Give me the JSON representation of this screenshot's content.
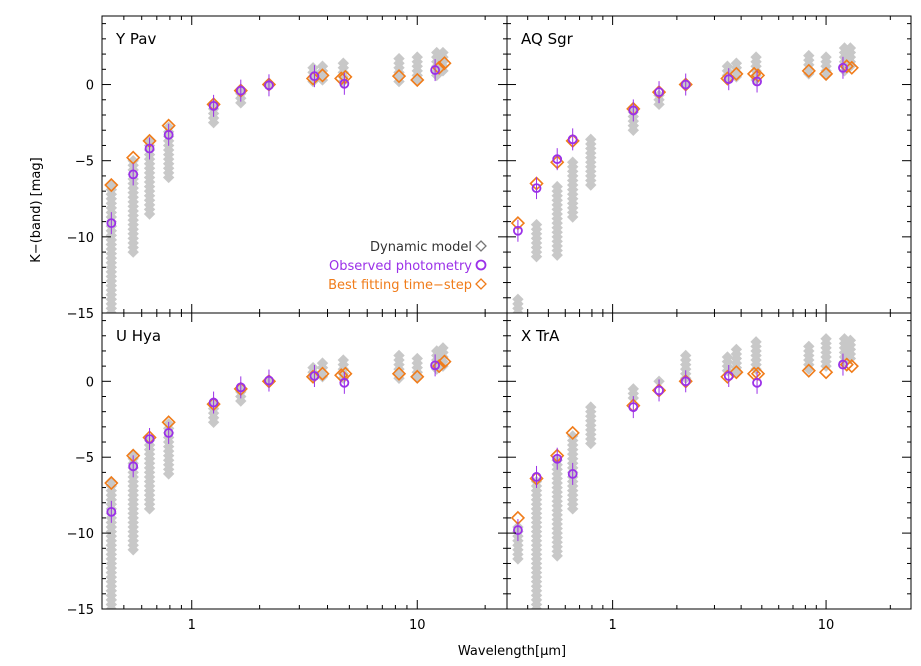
{
  "figure": {
    "xlabel": "Wavelength[μm]",
    "ylabel": "K−(band) [mag]",
    "legend": {
      "model": "Dynamic model",
      "observed": "Observed photometry",
      "best": "Best fitting time−step"
    },
    "colors": {
      "model": "#c8c8c8",
      "observed": "#9b30e8",
      "best": "#f07c1a"
    }
  },
  "chart_data": [
    {
      "type": "scatter",
      "title": "Y Pav",
      "xscale": "log",
      "xlim": [
        0.4,
        25
      ],
      "ylim": [
        -15,
        4.5
      ],
      "xticks": [
        1,
        10
      ],
      "yticks": [
        0,
        -5,
        -10,
        -15
      ],
      "show_y_tick_labels": true,
      "show_x_tick_labels": false,
      "legend_position": "center-right",
      "bands": [
        0.44,
        0.55,
        0.65,
        0.79,
        1.25,
        1.65,
        2.2,
        3.45,
        3.8,
        4.7,
        8.3,
        10.0,
        12.2,
        13.0
      ],
      "model_ranges": [
        [
          -15,
          -6.5
        ],
        [
          -11,
          -4.8
        ],
        [
          -8.5,
          -3.7
        ],
        [
          -6.1,
          -2.7
        ],
        [
          -2.5,
          -1.1
        ],
        [
          -1.2,
          -0.2
        ],
        [
          0,
          0
        ],
        [
          0.2,
          1.1
        ],
        [
          0.3,
          1.2
        ],
        [
          0.2,
          1.6
        ],
        [
          0.2,
          1.9
        ],
        [
          0.3,
          1.8
        ],
        [
          0.6,
          2.3
        ],
        [
          0.9,
          2.3
        ]
      ],
      "observed": [
        {
          "x": 0.44,
          "y": -9.1
        },
        {
          "x": 0.55,
          "y": -5.9
        },
        {
          "x": 0.65,
          "y": -4.2
        },
        {
          "x": 0.79,
          "y": -3.3
        },
        {
          "x": 1.25,
          "y": -1.4
        },
        {
          "x": 1.65,
          "y": -0.4
        },
        {
          "x": 2.2,
          "y": -0.05
        },
        {
          "x": 3.5,
          "y": 0.55
        },
        {
          "x": 4.75,
          "y": 0.05
        },
        {
          "x": 12.0,
          "y": 0.95
        }
      ],
      "best": [
        {
          "x": 0.44,
          "y": -6.6
        },
        {
          "x": 0.55,
          "y": -4.8
        },
        {
          "x": 0.65,
          "y": -3.7
        },
        {
          "x": 0.79,
          "y": -2.7
        },
        {
          "x": 1.25,
          "y": -1.3
        },
        {
          "x": 1.65,
          "y": -0.4
        },
        {
          "x": 2.2,
          "y": 0
        },
        {
          "x": 3.45,
          "y": 0.4
        },
        {
          "x": 3.8,
          "y": 0.6
        },
        {
          "x": 4.6,
          "y": 0.4
        },
        {
          "x": 4.8,
          "y": 0.5
        },
        {
          "x": 8.3,
          "y": 0.55
        },
        {
          "x": 10.0,
          "y": 0.3
        },
        {
          "x": 12.5,
          "y": 1.1
        },
        {
          "x": 13.2,
          "y": 1.4
        }
      ]
    },
    {
      "type": "scatter",
      "title": "AQ Sgr",
      "xscale": "log",
      "xlim": [
        0.32,
        25
      ],
      "ylim": [
        -15,
        4.5
      ],
      "xticks": [
        1,
        10
      ],
      "yticks": [
        0,
        -5,
        -10,
        -15
      ],
      "show_y_tick_labels": false,
      "show_x_tick_labels": false,
      "bands": [
        0.36,
        0.44,
        0.55,
        0.65,
        0.79,
        1.25,
        1.65,
        2.2,
        3.45,
        3.8,
        4.7,
        8.3,
        10.0,
        12.2,
        13.0
      ],
      "model_ranges": [
        [
          -15,
          -14
        ],
        [
          -11.3,
          -9.0
        ],
        [
          -11.2,
          -6.5
        ],
        [
          -8.7,
          -5.0
        ],
        [
          -6.6,
          -3.5
        ],
        [
          -3.0,
          -1.5
        ],
        [
          -1.3,
          -0.5
        ],
        [
          0,
          0
        ],
        [
          0.3,
          1.4
        ],
        [
          0.5,
          1.6
        ],
        [
          0.3,
          2.0
        ],
        [
          0.7,
          2.1
        ],
        [
          0.6,
          2.0
        ],
        [
          0.9,
          2.5
        ],
        [
          1.2,
          2.5
        ]
      ],
      "observed": [
        {
          "x": 0.36,
          "y": -9.6
        },
        {
          "x": 0.44,
          "y": -6.8
        },
        {
          "x": 0.55,
          "y": -4.9
        },
        {
          "x": 0.65,
          "y": -3.6
        },
        {
          "x": 1.25,
          "y": -1.7
        },
        {
          "x": 1.65,
          "y": -0.5
        },
        {
          "x": 2.2,
          "y": 0.0
        },
        {
          "x": 3.5,
          "y": 0.35
        },
        {
          "x": 4.75,
          "y": 0.2
        },
        {
          "x": 12.0,
          "y": 1.1
        }
      ],
      "best": [
        {
          "x": 0.36,
          "y": -9.1
        },
        {
          "x": 0.44,
          "y": -6.5
        },
        {
          "x": 0.55,
          "y": -5.1
        },
        {
          "x": 0.65,
          "y": -3.7
        },
        {
          "x": 1.25,
          "y": -1.6
        },
        {
          "x": 1.65,
          "y": -0.5
        },
        {
          "x": 2.2,
          "y": 0
        },
        {
          "x": 3.45,
          "y": 0.4
        },
        {
          "x": 3.8,
          "y": 0.7
        },
        {
          "x": 4.6,
          "y": 0.7
        },
        {
          "x": 4.8,
          "y": 0.6
        },
        {
          "x": 8.3,
          "y": 0.9
        },
        {
          "x": 10.0,
          "y": 0.7
        },
        {
          "x": 12.5,
          "y": 1.2
        },
        {
          "x": 13.2,
          "y": 1.1
        }
      ]
    },
    {
      "type": "scatter",
      "title": "U Hya",
      "xscale": "log",
      "xlim": [
        0.4,
        25
      ],
      "ylim": [
        -15,
        4.5
      ],
      "xticks": [
        1,
        10
      ],
      "yticks": [
        0,
        -5,
        -10,
        -15
      ],
      "show_y_tick_labels": true,
      "show_x_tick_labels": true,
      "bands": [
        0.44,
        0.55,
        0.65,
        0.79,
        1.25,
        1.65,
        2.2,
        3.45,
        3.8,
        4.7,
        8.3,
        10.0,
        12.2,
        13.0
      ],
      "model_ranges": [
        [
          -15,
          -6.6
        ],
        [
          -11.1,
          -4.8
        ],
        [
          -8.4,
          -3.7
        ],
        [
          -6.1,
          -2.7
        ],
        [
          -2.7,
          -1.3
        ],
        [
          -1.3,
          -0.3
        ],
        [
          0,
          0
        ],
        [
          0.3,
          1.1
        ],
        [
          0.3,
          1.3
        ],
        [
          0.2,
          1.6
        ],
        [
          0.2,
          1.8
        ],
        [
          0.3,
          1.7
        ],
        [
          0.8,
          2.2
        ],
        [
          1.0,
          2.2
        ]
      ],
      "observed": [
        {
          "x": 0.44,
          "y": -8.6
        },
        {
          "x": 0.55,
          "y": -5.6
        },
        {
          "x": 0.65,
          "y": -3.8
        },
        {
          "x": 0.79,
          "y": -3.4
        },
        {
          "x": 1.25,
          "y": -1.4
        },
        {
          "x": 1.65,
          "y": -0.4
        },
        {
          "x": 2.2,
          "y": 0.05
        },
        {
          "x": 3.5,
          "y": 0.35
        },
        {
          "x": 4.75,
          "y": -0.1
        },
        {
          "x": 12.0,
          "y": 1.05
        }
      ],
      "best": [
        {
          "x": 0.44,
          "y": -6.7
        },
        {
          "x": 0.55,
          "y": -4.9
        },
        {
          "x": 0.65,
          "y": -3.7
        },
        {
          "x": 0.79,
          "y": -2.7
        },
        {
          "x": 1.25,
          "y": -1.5
        },
        {
          "x": 1.65,
          "y": -0.5
        },
        {
          "x": 2.2,
          "y": 0
        },
        {
          "x": 3.45,
          "y": 0.3
        },
        {
          "x": 3.8,
          "y": 0.5
        },
        {
          "x": 4.6,
          "y": 0.4
        },
        {
          "x": 4.8,
          "y": 0.5
        },
        {
          "x": 8.3,
          "y": 0.5
        },
        {
          "x": 10.0,
          "y": 0.3
        },
        {
          "x": 12.5,
          "y": 1.0
        },
        {
          "x": 13.2,
          "y": 1.3
        }
      ]
    },
    {
      "type": "scatter",
      "title": "X TrA",
      "xscale": "log",
      "xlim": [
        0.32,
        25
      ],
      "ylim": [
        -15,
        4.5
      ],
      "xticks": [
        1,
        10
      ],
      "yticks": [
        0,
        -5,
        -10,
        -15
      ],
      "show_y_tick_labels": false,
      "show_x_tick_labels": true,
      "bands": [
        0.36,
        0.44,
        0.55,
        0.65,
        0.79,
        1.25,
        1.65,
        2.2,
        3.45,
        3.8,
        4.7,
        8.3,
        10.0,
        12.2,
        13.0
      ],
      "model_ranges": [
        [
          -11.7,
          -9.4
        ],
        [
          -15,
          -6.5
        ],
        [
          -11.5,
          -5.0
        ],
        [
          -8.4,
          -3.6
        ],
        [
          -4.1,
          -1.7
        ],
        [
          -1.1,
          -0.5
        ],
        [
          0,
          0
        ],
        [
          0.2,
          1.7
        ],
        [
          0.7,
          1.8
        ],
        [
          0.6,
          2.3
        ],
        [
          0.8,
          2.7
        ],
        [
          0.8,
          2.3
        ],
        [
          1.0,
          2.9
        ],
        [
          1.3,
          2.9
        ],
        [
          1.5,
          2.9
        ]
      ],
      "observed": [
        {
          "x": 0.36,
          "y": -9.8
        },
        {
          "x": 0.44,
          "y": -6.3
        },
        {
          "x": 0.55,
          "y": -5.1
        },
        {
          "x": 0.65,
          "y": -6.1
        },
        {
          "x": 1.25,
          "y": -1.7
        },
        {
          "x": 1.65,
          "y": -0.6
        },
        {
          "x": 2.2,
          "y": 0.0
        },
        {
          "x": 3.5,
          "y": 0.35
        },
        {
          "x": 4.75,
          "y": -0.1
        },
        {
          "x": 12.0,
          "y": 1.1
        }
      ],
      "best": [
        {
          "x": 0.36,
          "y": -9.0
        },
        {
          "x": 0.44,
          "y": -6.4
        },
        {
          "x": 0.55,
          "y": -4.9
        },
        {
          "x": 0.65,
          "y": -3.4
        },
        {
          "x": 1.25,
          "y": -1.6
        },
        {
          "x": 1.65,
          "y": -0.6
        },
        {
          "x": 2.2,
          "y": 0
        },
        {
          "x": 3.45,
          "y": 0.3
        },
        {
          "x": 3.8,
          "y": 0.6
        },
        {
          "x": 4.6,
          "y": 0.5
        },
        {
          "x": 4.8,
          "y": 0.5
        },
        {
          "x": 8.3,
          "y": 0.7
        },
        {
          "x": 10.0,
          "y": 0.6
        },
        {
          "x": 12.5,
          "y": 1.1
        },
        {
          "x": 13.2,
          "y": 1.0
        }
      ]
    }
  ]
}
